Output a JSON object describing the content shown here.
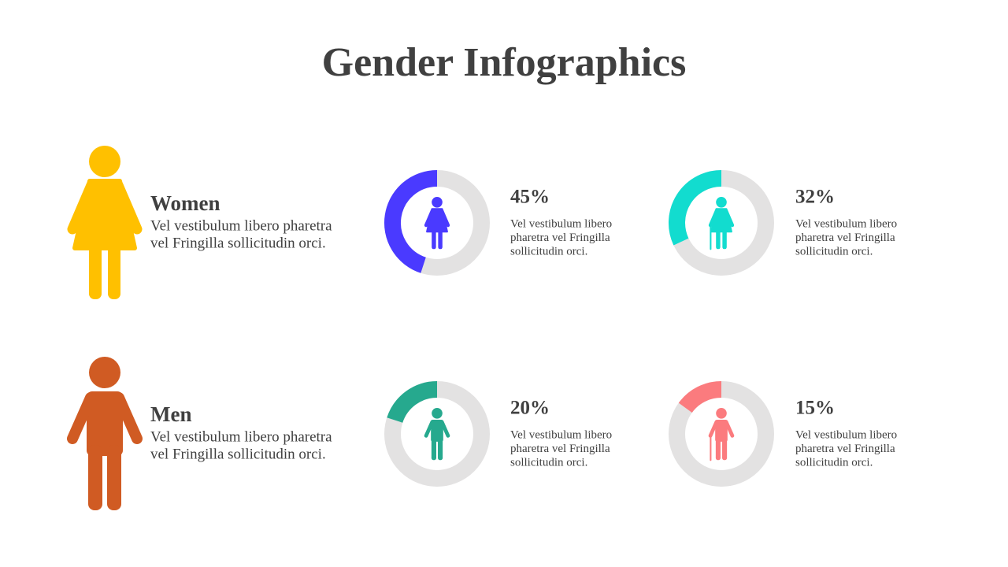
{
  "title": "Gender Infographics",
  "donut_range": [
    0,
    100
  ],
  "track_color": "#e3e2e2",
  "groups": [
    {
      "label": "Women",
      "color": "#ffc000",
      "figure": "woman",
      "description": [
        "Vel vestibulum libero pharetra",
        "vel Fringilla sollicitudin orci."
      ],
      "stats": [
        {
          "value": 45,
          "value_label": "45%",
          "color": "#4a3aff",
          "elderly": false,
          "description": [
            "Vel vestibulum libero",
            "pharetra vel Fringilla",
            "sollicitudin orci."
          ]
        },
        {
          "value": 32,
          "value_label": "32%",
          "color": "#12dccf",
          "elderly": true,
          "description": [
            "Vel vestibulum libero",
            "pharetra vel Fringilla",
            "sollicitudin orci."
          ]
        }
      ]
    },
    {
      "label": "Men",
      "color": "#d05b23",
      "figure": "man",
      "description": [
        "Vel vestibulum libero pharetra",
        "vel Fringilla sollicitudin orci."
      ],
      "stats": [
        {
          "value": 20,
          "value_label": "20%",
          "color": "#26a98e",
          "elderly": false,
          "description": [
            "Vel vestibulum libero",
            "pharetra vel Fringilla",
            "sollicitudin orci."
          ]
        },
        {
          "value": 15,
          "value_label": "15%",
          "color": "#fb7b7e",
          "elderly": true,
          "description": [
            "Vel vestibulum libero",
            "pharetra vel Fringilla",
            "sollicitudin orci."
          ]
        }
      ]
    }
  ]
}
